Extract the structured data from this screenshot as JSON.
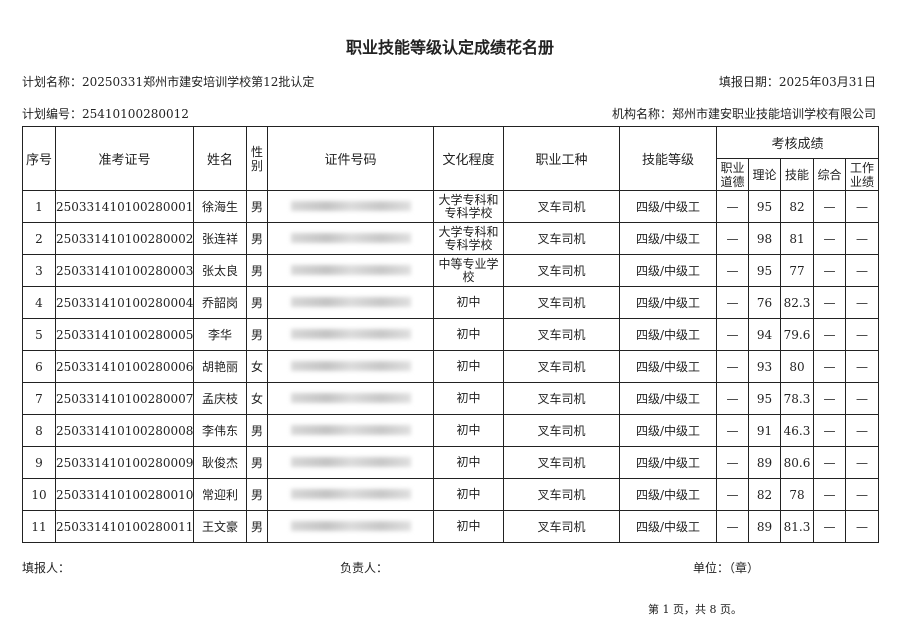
{
  "title": "职业技能等级认定成绩花名册",
  "plan_name": "计划名称：20250331郑州市建安培训学校第12批认定",
  "fill_date": "填报日期：2025年03月31日",
  "plan_no": "计划编号：25410100280012",
  "org_name": "机构名称：郑州市建安职业技能培训学校有限公司",
  "headers": {
    "seq": "序号",
    "exam_no": "准考证号",
    "name": "姓名",
    "gender": "性别",
    "id_no": "证件号码",
    "education": "文化程度",
    "occupation": "职业工种",
    "level": "技能等级",
    "scores": "考核成绩",
    "ethics": "职业道德",
    "theory": "理论",
    "skill": "技能",
    "overall": "综合",
    "work": "工作业绩"
  },
  "rows": [
    {
      "seq": "1",
      "exam_no": "250331410100280001",
      "name": "徐海生",
      "gender": "男",
      "education": "大学专科和专科学校",
      "occupation": "叉车司机",
      "level": "四级/中级工",
      "ethics": "—",
      "theory": "95",
      "skill": "82",
      "overall": "—",
      "work": "—"
    },
    {
      "seq": "2",
      "exam_no": "250331410100280002",
      "name": "张连祥",
      "gender": "男",
      "education": "大学专科和专科学校",
      "occupation": "叉车司机",
      "level": "四级/中级工",
      "ethics": "—",
      "theory": "98",
      "skill": "81",
      "overall": "—",
      "work": "—"
    },
    {
      "seq": "3",
      "exam_no": "250331410100280003",
      "name": "张太良",
      "gender": "男",
      "education": "中等专业学校",
      "occupation": "叉车司机",
      "level": "四级/中级工",
      "ethics": "—",
      "theory": "95",
      "skill": "77",
      "overall": "—",
      "work": "—"
    },
    {
      "seq": "4",
      "exam_no": "250331410100280004",
      "name": "乔韶岗",
      "gender": "男",
      "education": "初中",
      "occupation": "叉车司机",
      "level": "四级/中级工",
      "ethics": "—",
      "theory": "76",
      "skill": "82.3",
      "overall": "—",
      "work": "—"
    },
    {
      "seq": "5",
      "exam_no": "250331410100280005",
      "name": "李华",
      "gender": "男",
      "education": "初中",
      "occupation": "叉车司机",
      "level": "四级/中级工",
      "ethics": "—",
      "theory": "94",
      "skill": "79.6",
      "overall": "—",
      "work": "—"
    },
    {
      "seq": "6",
      "exam_no": "250331410100280006",
      "name": "胡艳丽",
      "gender": "女",
      "education": "初中",
      "occupation": "叉车司机",
      "level": "四级/中级工",
      "ethics": "—",
      "theory": "93",
      "skill": "80",
      "overall": "—",
      "work": "—"
    },
    {
      "seq": "7",
      "exam_no": "250331410100280007",
      "name": "孟庆枝",
      "gender": "女",
      "education": "初中",
      "occupation": "叉车司机",
      "level": "四级/中级工",
      "ethics": "—",
      "theory": "95",
      "skill": "78.3",
      "overall": "—",
      "work": "—"
    },
    {
      "seq": "8",
      "exam_no": "250331410100280008",
      "name": "李伟东",
      "gender": "男",
      "education": "初中",
      "occupation": "叉车司机",
      "level": "四级/中级工",
      "ethics": "—",
      "theory": "91",
      "skill": "46.3",
      "overall": "—",
      "work": "—"
    },
    {
      "seq": "9",
      "exam_no": "250331410100280009",
      "name": "耿俊杰",
      "gender": "男",
      "education": "初中",
      "occupation": "叉车司机",
      "level": "四级/中级工",
      "ethics": "—",
      "theory": "89",
      "skill": "80.6",
      "overall": "—",
      "work": "—"
    },
    {
      "seq": "10",
      "exam_no": "250331410100280010",
      "name": "常迎利",
      "gender": "男",
      "education": "初中",
      "occupation": "叉车司机",
      "level": "四级/中级工",
      "ethics": "—",
      "theory": "82",
      "skill": "78",
      "overall": "—",
      "work": "—"
    },
    {
      "seq": "11",
      "exam_no": "250331410100280011",
      "name": "王文豪",
      "gender": "男",
      "education": "初中",
      "occupation": "叉车司机",
      "level": "四级/中级工",
      "ethics": "—",
      "theory": "89",
      "skill": "81.3",
      "overall": "—",
      "work": "—"
    }
  ],
  "footer": {
    "filler": "填报人：",
    "responsible": "负责人：",
    "unit": "单位：（章）",
    "page": "第 1 页，共 8 页。"
  }
}
